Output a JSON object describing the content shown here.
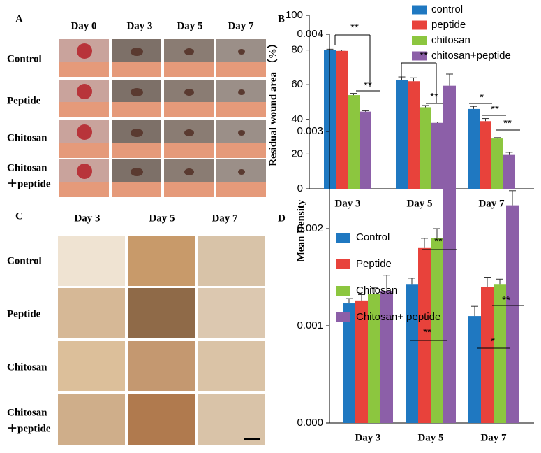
{
  "panel_a": {
    "label": "A",
    "columns": [
      "Day 0",
      "Day 3",
      "Day 5",
      "Day 7"
    ],
    "rows": [
      [
        "Control"
      ],
      [
        "Peptide"
      ],
      [
        "Chitosan"
      ],
      [
        "Chitosan",
        "＋peptide"
      ]
    ]
  },
  "panel_c": {
    "label": "C",
    "columns": [
      "Day 3",
      "Day 5",
      "Day 7"
    ],
    "rows": [
      [
        "Control"
      ],
      [
        "Peptide"
      ],
      [
        "Chitosan"
      ],
      [
        "Chitosan",
        "＋peptide"
      ]
    ]
  },
  "chart_data": [
    {
      "type": "bar",
      "label": "B",
      "y_label": "Residual wound area （%）",
      "categories": [
        "Day 3",
        "Day 5",
        "Day 7"
      ],
      "series": [
        {
          "name": "control",
          "color": "#1f78c1",
          "values": [
            80,
            62.5,
            46
          ],
          "errors": [
            0.5,
            2,
            1.5
          ]
        },
        {
          "name": "peptide",
          "color": "#e8423b",
          "values": [
            79.5,
            62,
            39
          ],
          "errors": [
            0.5,
            2,
            1.5
          ]
        },
        {
          "name": "chitosan",
          "color": "#8cc63f",
          "values": [
            54,
            47,
            29
          ],
          "errors": [
            1,
            1,
            0.5
          ]
        },
        {
          "name": "chitosan+peptide",
          "color": "#8c5fa8",
          "values": [
            44.5,
            38,
            19.5
          ],
          "errors": [
            0.5,
            0.5,
            1.5
          ]
        }
      ],
      "ylim": [
        0,
        100
      ],
      "yticks": [
        0,
        20,
        40,
        60,
        80,
        100
      ],
      "annotations": [
        "**",
        "**",
        "**",
        "**",
        "*",
        "**",
        "**"
      ]
    },
    {
      "type": "bar",
      "label": "D",
      "y_label": "Mean Density",
      "categories": [
        "Day 3",
        "Day 5",
        "Day 7"
      ],
      "series": [
        {
          "name": "Control",
          "color": "#1f78c1",
          "values": [
            0.00123,
            0.00143,
            0.0011
          ],
          "errors": [
            5e-05,
            6e-05,
            0.0001
          ]
        },
        {
          "name": "Peptide",
          "color": "#e8423b",
          "values": [
            0.00126,
            0.0018,
            0.0014
          ],
          "errors": [
            6e-05,
            0.0001,
            0.0001
          ]
        },
        {
          "name": "Chitosan",
          "color": "#8cc63f",
          "values": [
            0.00133,
            0.0019,
            0.00143
          ],
          "errors": [
            6e-05,
            0.0001,
            5e-05
          ]
        },
        {
          "name": "Chitosan+ peptide",
          "color": "#8c5fa8",
          "values": [
            0.00136,
            0.00347,
            0.00224
          ],
          "errors": [
            0.00016,
            0.00012,
            0.00015
          ]
        }
      ],
      "ylim": [
        0,
        0.004
      ],
      "yticks": [
        {
          "value": 0,
          "label": "0.000"
        },
        {
          "value": 0.001,
          "label": "0.001"
        },
        {
          "value": 0.002,
          "label": "0.002"
        },
        {
          "value": 0.003,
          "label": "0.003"
        },
        {
          "value": 0.004,
          "label": "0.004"
        }
      ],
      "annotations": [
        "**",
        "**",
        "*",
        "**"
      ]
    }
  ]
}
